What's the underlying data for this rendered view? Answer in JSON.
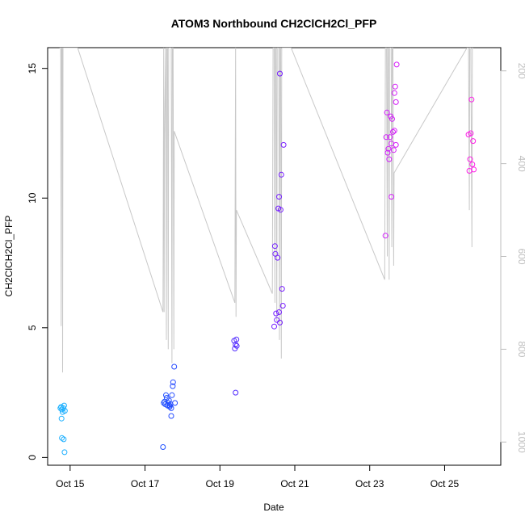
{
  "chart_data": {
    "type": "scatter",
    "title": "ATOM3 Northbound CH2ClCH2Cl_PFP",
    "xlabel": "Date",
    "ylabel": "CH2ClCH2Cl_PFP",
    "xlim": [
      14.4,
      26.5
    ],
    "ylim": [
      -0.3,
      15.8
    ],
    "x_ticks": [
      {
        "value": 15.0,
        "label": "Oct 15"
      },
      {
        "value": 17.0,
        "label": "Oct 17"
      },
      {
        "value": 19.0,
        "label": "Oct 19"
      },
      {
        "value": 21.0,
        "label": "Oct 21"
      },
      {
        "value": 23.0,
        "label": "Oct 23"
      },
      {
        "value": 25.0,
        "label": "Oct 25"
      }
    ],
    "y_ticks": [
      0,
      5,
      10,
      15
    ],
    "right_axis": {
      "description": "altitude (gray line)",
      "ylim": [
        1050,
        150
      ],
      "ticks": [
        200,
        400,
        600,
        800,
        1000
      ],
      "color": "#bebebe"
    },
    "altitude_series": {
      "name": "altitude",
      "color": "#c8c8c8",
      "points": [
        [
          14.72,
          150
        ],
        [
          14.75,
          150
        ],
        [
          14.76,
          750
        ],
        [
          14.77,
          150
        ],
        [
          14.79,
          150
        ],
        [
          14.8,
          850
        ],
        [
          14.81,
          150
        ],
        [
          15.2,
          150
        ],
        [
          17.48,
          720
        ],
        [
          17.5,
          150
        ],
        [
          17.51,
          720
        ],
        [
          17.52,
          350
        ],
        [
          17.55,
          150
        ],
        [
          17.57,
          780
        ],
        [
          17.58,
          150
        ],
        [
          17.6,
          150
        ],
        [
          17.62,
          800
        ],
        [
          17.63,
          150
        ],
        [
          17.7,
          150
        ],
        [
          17.72,
          830
        ],
        [
          17.73,
          150
        ],
        [
          17.75,
          150
        ],
        [
          17.77,
          800
        ],
        [
          17.78,
          330
        ],
        [
          19.4,
          700
        ],
        [
          19.42,
          150
        ],
        [
          19.43,
          730
        ],
        [
          19.44,
          500
        ],
        [
          20.4,
          680
        ],
        [
          20.42,
          150
        ],
        [
          20.45,
          150
        ],
        [
          20.47,
          700
        ],
        [
          20.48,
          150
        ],
        [
          20.5,
          150
        ],
        [
          20.52,
          740
        ],
        [
          20.53,
          150
        ],
        [
          20.57,
          150
        ],
        [
          20.59,
          780
        ],
        [
          20.6,
          150
        ],
        [
          20.62,
          150
        ],
        [
          20.64,
          820
        ],
        [
          20.65,
          150
        ],
        [
          20.9,
          150
        ],
        [
          23.4,
          650
        ],
        [
          23.42,
          150
        ],
        [
          23.45,
          150
        ],
        [
          23.47,
          600
        ],
        [
          23.48,
          150
        ],
        [
          23.5,
          150
        ],
        [
          23.52,
          650
        ],
        [
          23.53,
          150
        ],
        [
          23.57,
          150
        ],
        [
          23.59,
          580
        ],
        [
          23.6,
          150
        ],
        [
          23.62,
          150
        ],
        [
          23.64,
          620
        ],
        [
          23.65,
          420
        ],
        [
          25.6,
          150
        ],
        [
          25.64,
          150
        ],
        [
          25.66,
          500
        ],
        [
          25.67,
          150
        ],
        [
          25.7,
          150
        ],
        [
          25.73,
          580
        ],
        [
          25.74,
          150
        ],
        [
          25.76,
          150
        ]
      ]
    },
    "series": [
      {
        "name": "CH2ClCH2Cl_PFP",
        "points": [
          [
            14.74,
            1.9
          ],
          [
            14.76,
            1.95
          ],
          [
            14.78,
            1.85
          ],
          [
            14.8,
            1.75
          ],
          [
            14.82,
            1.9
          ],
          [
            14.84,
            2.0
          ],
          [
            14.86,
            1.8
          ],
          [
            14.77,
            1.5
          ],
          [
            14.78,
            0.75
          ],
          [
            14.83,
            0.7
          ],
          [
            14.85,
            0.2
          ],
          [
            17.48,
            0.4
          ],
          [
            17.5,
            2.1
          ],
          [
            17.52,
            2.15
          ],
          [
            17.54,
            2.05
          ],
          [
            17.56,
            2.4
          ],
          [
            17.58,
            2.3
          ],
          [
            17.6,
            2.0
          ],
          [
            17.62,
            2.1
          ],
          [
            17.64,
            2.2
          ],
          [
            17.66,
            1.95
          ],
          [
            17.68,
            2.05
          ],
          [
            17.7,
            1.6
          ],
          [
            17.72,
            2.4
          ],
          [
            17.74,
            2.75
          ],
          [
            17.75,
            2.9
          ],
          [
            17.78,
            3.5
          ],
          [
            17.8,
            2.1
          ],
          [
            17.66,
            2.0
          ],
          [
            17.7,
            1.9
          ],
          [
            19.38,
            4.5
          ],
          [
            19.4,
            4.2
          ],
          [
            19.42,
            4.35
          ],
          [
            19.44,
            4.55
          ],
          [
            19.45,
            4.3
          ],
          [
            19.42,
            2.5
          ],
          [
            20.45,
            5.05
          ],
          [
            20.47,
            8.15
          ],
          [
            20.48,
            7.85
          ],
          [
            20.5,
            5.55
          ],
          [
            20.52,
            5.3
          ],
          [
            20.54,
            7.7
          ],
          [
            20.56,
            9.6
          ],
          [
            20.58,
            10.05
          ],
          [
            20.6,
            14.8
          ],
          [
            20.62,
            9.55
          ],
          [
            20.64,
            10.9
          ],
          [
            20.66,
            6.5
          ],
          [
            20.68,
            5.85
          ],
          [
            20.7,
            12.05
          ],
          [
            20.58,
            5.6
          ],
          [
            20.6,
            5.2
          ],
          [
            23.42,
            8.55
          ],
          [
            23.44,
            12.35
          ],
          [
            23.46,
            13.3
          ],
          [
            23.48,
            11.75
          ],
          [
            23.5,
            11.9
          ],
          [
            23.52,
            11.5
          ],
          [
            23.54,
            12.35
          ],
          [
            23.56,
            13.15
          ],
          [
            23.58,
            12.1
          ],
          [
            23.6,
            13.05
          ],
          [
            23.62,
            12.55
          ],
          [
            23.64,
            11.85
          ],
          [
            23.66,
            14.05
          ],
          [
            23.68,
            14.3
          ],
          [
            23.7,
            13.7
          ],
          [
            23.72,
            15.15
          ],
          [
            23.58,
            10.05
          ],
          [
            23.66,
            12.6
          ],
          [
            23.7,
            12.05
          ],
          [
            25.64,
            12.45
          ],
          [
            25.66,
            11.05
          ],
          [
            25.68,
            11.5
          ],
          [
            25.7,
            12.5
          ],
          [
            25.72,
            13.8
          ],
          [
            25.74,
            11.3
          ],
          [
            25.76,
            12.2
          ],
          [
            25.78,
            11.1
          ]
        ]
      }
    ],
    "point_color_scale": {
      "description": "points colored by time, cyan to blue to magenta",
      "stops": [
        "#1eb4ff",
        "#1e50ff",
        "#6a1eff",
        "#c81eff",
        "#ff1ee6"
      ]
    }
  }
}
